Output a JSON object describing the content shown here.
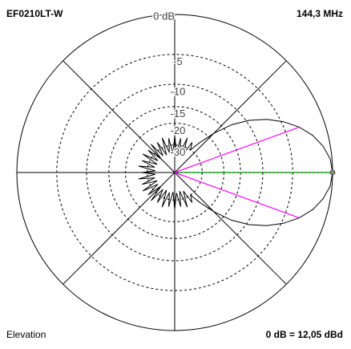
{
  "chart_data": {
    "type": "polar",
    "title": "EF0210LT-W",
    "frequency": "144,3 MHz",
    "plane": "Elevation",
    "reference": "0 dB = 12,05 dBd",
    "scale": "arrl-log",
    "rlim": [
      -40,
      0
    ],
    "rticks": [
      {
        "value": 0,
        "label": "0 dB"
      },
      -5,
      -10,
      -15,
      -20,
      -30
    ],
    "angles": [
      0,
      5,
      10,
      15,
      20,
      25,
      30,
      35,
      40,
      45,
      50,
      55,
      60,
      65,
      70,
      75,
      80,
      85,
      90,
      95,
      100,
      105,
      110,
      115,
      120,
      125,
      130,
      135,
      140,
      145,
      150,
      155,
      160,
      165,
      170,
      175,
      180,
      185,
      190,
      195,
      200,
      205,
      210,
      215,
      220,
      225,
      230,
      235,
      240,
      245,
      250,
      255,
      260,
      265,
      270,
      275,
      280,
      285,
      290,
      295,
      300,
      305,
      310,
      315,
      320,
      325,
      330,
      335,
      340,
      345,
      350,
      355
    ],
    "values": [
      0,
      -0.2,
      -0.8,
      -1.7,
      -3,
      -4.7,
      -6.8,
      -9.5,
      -13,
      -18,
      -24,
      -30,
      -26,
      -35,
      -25,
      -36,
      -26,
      -35,
      -25,
      -36,
      -26,
      -35,
      -25,
      -36,
      -26,
      -35,
      -25,
      -36,
      -26,
      -35,
      -25,
      -36,
      -26,
      -35,
      -25,
      -36,
      -27,
      -36,
      -25,
      -35,
      -26,
      -36,
      -25,
      -35,
      -26,
      -36,
      -25,
      -35,
      -26,
      -36,
      -25,
      -35,
      -26,
      -36,
      -25,
      -35,
      -26,
      -36,
      -25,
      -35,
      -26,
      -30,
      -24,
      -18,
      -13,
      -9.5,
      -6.8,
      -4.7,
      -3,
      -1.7,
      -0.8,
      -0.2
    ],
    "color": "#000000",
    "main_lobe": {
      "angle": 0,
      "color": "#00cc00"
    },
    "half_power": {
      "angles": [
        20,
        340
      ],
      "gain": -3,
      "color": "#ff00ff"
    }
  }
}
